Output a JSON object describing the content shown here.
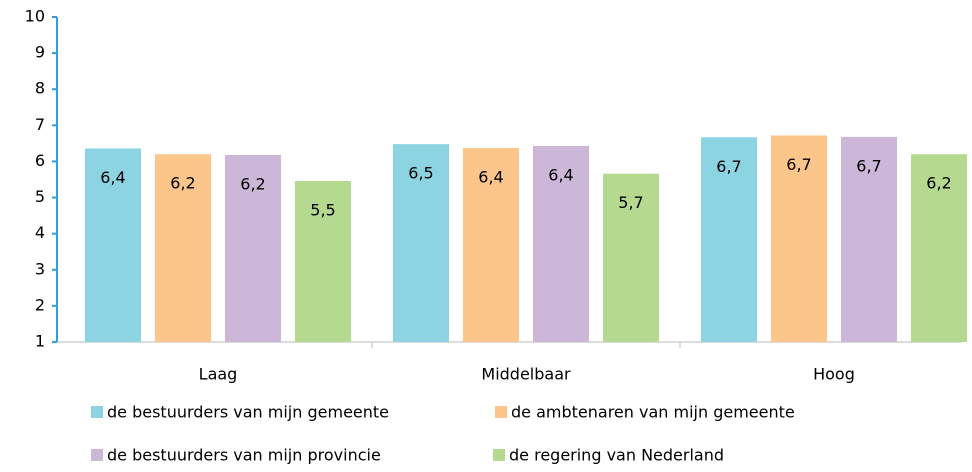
{
  "chart_data": {
    "type": "bar",
    "categories": [
      "Laag",
      "Middelbaar",
      "Hoog"
    ],
    "series": [
      {
        "name": "de bestuurders van mijn gemeente",
        "color": "#8dd4e3",
        "values": [
          6.36,
          6.48,
          6.67
        ],
        "value_labels": [
          "6,4",
          "6,5",
          "6,7"
        ]
      },
      {
        "name": "de ambtenaren van mijn gemeente",
        "color": "#fcc68b",
        "values": [
          6.2,
          6.37,
          6.72
        ],
        "value_labels": [
          "6,2",
          "6,4",
          "6,7"
        ]
      },
      {
        "name": "de bestuurders van mijn provincie",
        "color": "#cdb7d9",
        "values": [
          6.18,
          6.43,
          6.68
        ],
        "value_labels": [
          "6,2",
          "6,4",
          "6,7"
        ]
      },
      {
        "name": "de regering van Nederland",
        "color": "#b5d98f",
        "values": [
          5.46,
          5.66,
          6.2
        ],
        "value_labels": [
          "5,5",
          "5,7",
          "6,2"
        ]
      }
    ],
    "ylim": [
      1,
      10
    ],
    "yticks": [
      1,
      2,
      3,
      4,
      5,
      6,
      7,
      8,
      9,
      10
    ],
    "grid": false
  }
}
